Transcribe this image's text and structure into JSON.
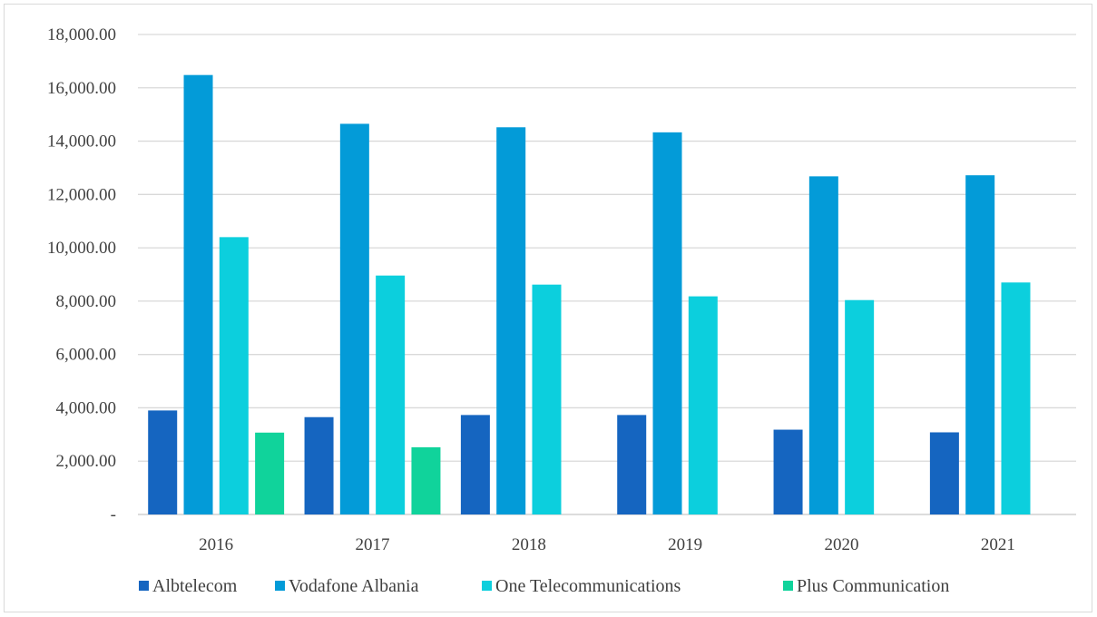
{
  "chart_data": {
    "type": "bar",
    "title": "",
    "xlabel": "",
    "ylabel": "",
    "categories": [
      "2016",
      "2017",
      "2018",
      "2019",
      "2020",
      "2021"
    ],
    "ylim": [
      0,
      18000
    ],
    "yticks": [
      0,
      2000,
      4000,
      6000,
      8000,
      10000,
      12000,
      14000,
      16000,
      18000
    ],
    "ytick_labels": [
      "-",
      "2,000.00",
      "4,000.00",
      "6,000.00",
      "8,000.00",
      "10,000.00",
      "12,000.00",
      "14,000.00",
      "16,000.00",
      "18,000.00"
    ],
    "grid": true,
    "legend_position": "bottom",
    "series": [
      {
        "name": "Albtelecom",
        "color": "#1565c0",
        "values": [
          3900,
          3650,
          3730,
          3730,
          3180,
          3080
        ]
      },
      {
        "name": "Vodafone Albania",
        "color": "#039bd8",
        "values": [
          16480,
          14650,
          14520,
          14330,
          12680,
          12720
        ]
      },
      {
        "name": "One Telecommunications",
        "color": "#0ccfdd",
        "values": [
          10400,
          8960,
          8620,
          8180,
          8040,
          8700
        ]
      },
      {
        "name": "Plus Communication",
        "color": "#10d39b",
        "values": [
          3070,
          2520,
          0,
          0,
          0,
          0
        ]
      }
    ]
  }
}
